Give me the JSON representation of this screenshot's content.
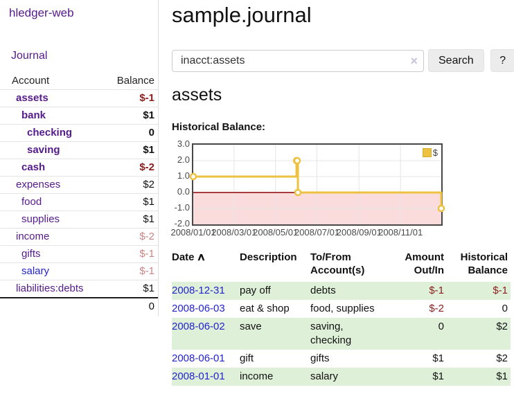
{
  "colors": {
    "link_purple": "#551a8b",
    "link_blue": "#2323cc",
    "negative_strong": "#8b1c1c",
    "negative_muted": "#c98585",
    "row_green": "#dff0d8",
    "chart_gold": "#edc240"
  },
  "sidebar": {
    "brand": "hledger-web",
    "journal_link": "Journal",
    "accounts_table": {
      "account_header": "Account",
      "balance_header": "Balance",
      "rows": [
        {
          "name": "assets",
          "balance": "$-1",
          "depth": 1,
          "bold": true,
          "balance_style": "negative-strong"
        },
        {
          "name": "bank",
          "balance": "$1",
          "depth": 2,
          "bold": true,
          "balance_style": "normal"
        },
        {
          "name": "checking",
          "balance": "0",
          "depth": 3,
          "bold": true,
          "balance_style": "normal"
        },
        {
          "name": "saving",
          "balance": "$1",
          "depth": 3,
          "bold": true,
          "balance_style": "normal"
        },
        {
          "name": "cash",
          "balance": "$-2",
          "depth": 2,
          "bold": true,
          "balance_style": "negative-strong"
        },
        {
          "name": "expenses",
          "balance": "$2",
          "depth": 1,
          "bold": false,
          "balance_style": "normal"
        },
        {
          "name": "food",
          "balance": "$1",
          "depth": 2,
          "bold": false,
          "balance_style": "normal"
        },
        {
          "name": "supplies",
          "balance": "$1",
          "depth": 2,
          "bold": false,
          "balance_style": "normal"
        },
        {
          "name": "income",
          "balance": "$-2",
          "depth": 1,
          "bold": false,
          "balance_style": "negative-muted"
        },
        {
          "name": "gifts",
          "balance": "$-1",
          "depth": 2,
          "bold": false,
          "balance_style": "negative-muted"
        },
        {
          "name": "salary",
          "balance": "$-1",
          "depth": 2,
          "bold": false,
          "balance_style": "negative-muted",
          "link_color": "blue"
        },
        {
          "name": "liabilities:debts",
          "balance": "$1",
          "depth": 1,
          "bold": false,
          "balance_style": "normal",
          "last": true
        }
      ],
      "total": "0"
    }
  },
  "main": {
    "title": "sample.journal",
    "search": {
      "value": "inacct:assets",
      "clear_icon": "×",
      "search_button": "Search",
      "help_button": "?"
    },
    "account_heading": "assets",
    "chart_title": "Historical Balance:"
  },
  "chart_data": {
    "type": "line",
    "step": true,
    "title": "Historical Balance:",
    "x_start": "2008/01/01",
    "x_end": "2008/12/31",
    "ylim": [
      -2.0,
      3.0
    ],
    "ytick_labels": [
      "3.0",
      "2.0",
      "1.0",
      "0.0",
      "-1.0",
      "-2.0"
    ],
    "xticks": [
      "2008/01/01",
      "2008/03/01",
      "2008/05/01",
      "2008/07/01",
      "2008/09/01",
      "2008/11/01"
    ],
    "series": [
      {
        "name": "$",
        "color": "#edc240",
        "points": [
          {
            "date": "2008/01/01",
            "value": 1.0
          },
          {
            "date": "2008/06/01",
            "value": 2.0
          },
          {
            "date": "2008/06/02",
            "value": 2.0
          },
          {
            "date": "2008/06/03",
            "value": 0.0
          },
          {
            "date": "2008/12/31",
            "value": -1.0
          }
        ]
      }
    ],
    "legend": {
      "label": "$",
      "position": "top-right"
    },
    "grid": true,
    "gridline_color": "#e6e6e6",
    "zero_line_color": "#8b0000",
    "below_zero_fill": "#fbdcdc"
  },
  "register": {
    "headers": {
      "date": "Date",
      "sort_icon": "∧",
      "description": "Description",
      "accounts": "To/From Account(s)",
      "amount": "Amount Out/In",
      "balance": "Historical Balance"
    },
    "rows": [
      {
        "date": "2008-12-31",
        "description": "pay off",
        "accounts": "debts",
        "amount": "$-1",
        "amount_negative": true,
        "balance": "$-1",
        "balance_negative": true
      },
      {
        "date": "2008-06-03",
        "description": "eat & shop",
        "accounts": "food, supplies",
        "amount": "$-2",
        "amount_negative": true,
        "balance": "0",
        "balance_negative": false
      },
      {
        "date": "2008-06-02",
        "description": "save",
        "accounts": "saving, checking",
        "amount": "0",
        "amount_negative": false,
        "balance": "$2",
        "balance_negative": false
      },
      {
        "date": "2008-06-01",
        "description": "gift",
        "accounts": "gifts",
        "amount": "$1",
        "amount_negative": false,
        "balance": "$2",
        "balance_negative": false
      },
      {
        "date": "2008-01-01",
        "description": "income",
        "accounts": "salary",
        "amount": "$1",
        "amount_negative": false,
        "balance": "$1",
        "balance_negative": false
      }
    ]
  }
}
